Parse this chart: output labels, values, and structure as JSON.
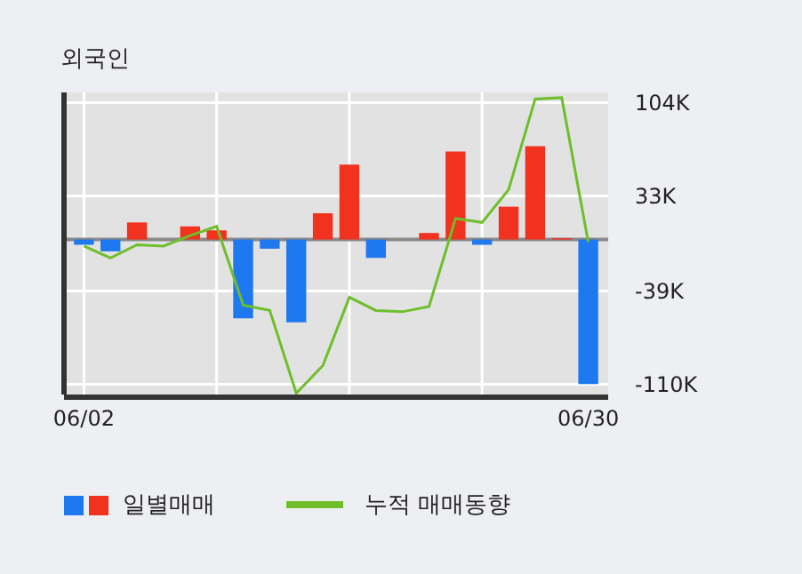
{
  "chart_data": {
    "type": "bar",
    "title": "외국인",
    "categories": [
      "06/02",
      null,
      null,
      null,
      null,
      null,
      null,
      null,
      null,
      null,
      null,
      null,
      null,
      null,
      null,
      null,
      null,
      null,
      null,
      "06/30"
    ],
    "series": [
      {
        "name": "일별매매",
        "colors": [
          "#1e78f0",
          "#1e78f0",
          "#f0321e",
          "#f0321e",
          "#f0321e",
          "#f0321e",
          "#1e78f0",
          "#1e78f0",
          "#1e78f0",
          "#f0321e",
          "#f0321e",
          "#1e78f0",
          "#f0321e",
          "#f0321e",
          "#f0321e",
          "#1e78f0",
          "#f0321e",
          "#f0321e",
          "#f0321e",
          "#1e78f0"
        ],
        "values": [
          -4000,
          -9000,
          13000,
          0,
          10000,
          7000,
          -60000,
          -7000,
          -63000,
          20000,
          57000,
          -14000,
          0,
          5000,
          67000,
          -4000,
          25000,
          71000,
          1000,
          -110000
        ]
      },
      {
        "name": "누적 매매동향",
        "type": "line",
        "color": "#6fbe2a",
        "values": [
          -5000,
          -14000,
          -4000,
          -5000,
          3000,
          10000,
          -50000,
          -54000,
          -117000,
          -96000,
          -44000,
          -54000,
          -55000,
          -51000,
          16000,
          13000,
          38000,
          107000,
          108000,
          -2000
        ]
      }
    ],
    "ylim": [
      -118000,
      112000
    ],
    "yticks": [
      {
        "value": 104000,
        "label": "104K"
      },
      {
        "value": 33000,
        "label": "33K"
      },
      {
        "value": -39000,
        "label": "-39K"
      },
      {
        "value": -110000,
        "label": "-110K"
      }
    ],
    "grid": true,
    "legend": "bottom",
    "marker": "none"
  }
}
